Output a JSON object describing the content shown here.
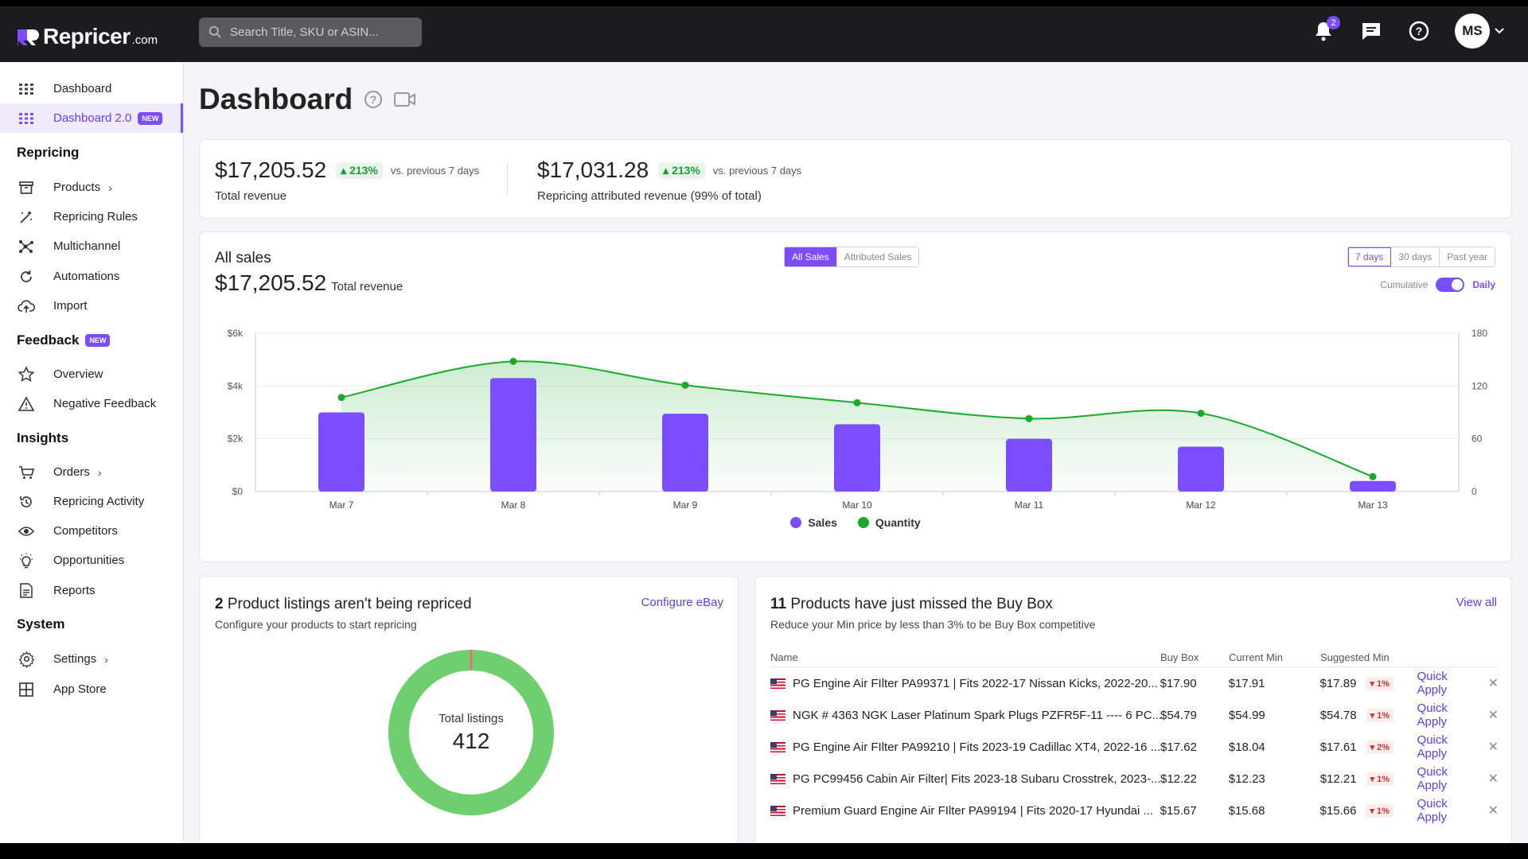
{
  "topbar": {
    "brand_name": "Repricer",
    "brand_tld": ".com",
    "search_placeholder": "Search Title, SKU or ASIN...",
    "notification_count": "2",
    "user_initials": "MS"
  },
  "sidebar": {
    "top_items": [
      {
        "label": "Dashboard",
        "icon": "grid-icon"
      },
      {
        "label": "Dashboard 2.0",
        "icon": "grid-icon",
        "badge": "NEW"
      }
    ],
    "sections": {
      "repricing": "Repricing",
      "feedback": "Feedback",
      "feedback_badge": "NEW",
      "insights": "Insights",
      "system": "System"
    },
    "repricing_items": [
      {
        "label": "Products",
        "icon": "box-icon"
      },
      {
        "label": "Repricing Rules",
        "icon": "wand-icon"
      },
      {
        "label": "Multichannel",
        "icon": "network-icon"
      },
      {
        "label": "Automations",
        "icon": "refresh-icon"
      },
      {
        "label": "Import",
        "icon": "upload-cloud-icon"
      }
    ],
    "feedback_items": [
      {
        "label": "Overview",
        "icon": "star-icon"
      },
      {
        "label": "Negative Feedback",
        "icon": "warning-icon"
      }
    ],
    "insights_items": [
      {
        "label": "Orders",
        "icon": "cart-icon"
      },
      {
        "label": "Repricing Activity",
        "icon": "history-icon"
      },
      {
        "label": "Competitors",
        "icon": "eye-icon"
      },
      {
        "label": "Opportunities",
        "icon": "lightbulb-icon"
      },
      {
        "label": "Reports",
        "icon": "report-icon"
      }
    ],
    "system_items": [
      {
        "label": "Settings",
        "icon": "gear-icon"
      },
      {
        "label": "App Store",
        "icon": "apps-icon"
      }
    ]
  },
  "page": {
    "title": "Dashboard"
  },
  "revenue": {
    "total_amount": "$17,205.52",
    "total_change": "213%",
    "total_vs": "vs. previous 7 days",
    "total_label": "Total revenue",
    "attr_amount": "$17,031.28",
    "attr_change": "213%",
    "attr_vs": "vs. previous 7 days",
    "attr_label": "Repricing attributed revenue (99% of total)"
  },
  "sales": {
    "title": "All sales",
    "amount": "$17,205.52",
    "amount_label": "Total revenue",
    "tab_all": "All Sales",
    "tab_attr": "Attributed Sales",
    "period_7": "7 days",
    "period_30": "30 days",
    "period_year": "Past year",
    "toggle_left": "Cumulative",
    "toggle_right": "Daily",
    "legend_sales": "Sales",
    "legend_quantity": "Quantity"
  },
  "chart_data": {
    "type": "bar",
    "categories": [
      "Mar 7",
      "Mar 8",
      "Mar 9",
      "Mar 10",
      "Mar 11",
      "Mar 12",
      "Mar 13"
    ],
    "series": [
      {
        "name": "Sales",
        "type": "bar",
        "axis": "left",
        "values": [
          3000,
          4300,
          2950,
          2550,
          2000,
          1700,
          400
        ]
      },
      {
        "name": "Quantity",
        "type": "line",
        "axis": "right",
        "values": [
          107,
          148,
          121,
          101,
          83,
          89,
          17
        ]
      }
    ],
    "y_left_ticks": [
      "$0",
      "$2k",
      "$4k",
      "$6k"
    ],
    "y_left_range": [
      0,
      6000
    ],
    "y_right_ticks": [
      "0",
      "60",
      "120",
      "180"
    ],
    "y_right_range": [
      0,
      180
    ],
    "colors": {
      "sales": "#7c4dff",
      "quantity": "#1aaa2a"
    },
    "grid": true
  },
  "unrepriced": {
    "count": "2",
    "title": "Product listings aren't being repriced",
    "subtitle": "Configure your products to start repricing",
    "link": "Configure eBay",
    "total_label": "Total listings",
    "total_value": "412",
    "repriced_fraction": 0.995,
    "colors": {
      "ok": "#6dcf6d",
      "bad": "#e57373"
    }
  },
  "buybox": {
    "count": "11",
    "title": "Products have just missed the Buy Box",
    "subtitle": "Reduce your Min price by less than 3% to be Buy Box competitive",
    "link": "View all",
    "headers": [
      "Name",
      "Buy Box",
      "Current Min",
      "Suggested Min"
    ],
    "action_label": "Quick Apply",
    "rows": [
      {
        "name": "PG Engine Air FIlter PA99371 | Fits 2022-17 Nissan Kicks, 2022-20...",
        "buy_box": "$17.90",
        "current_min": "$17.91",
        "suggested_min": "$17.89",
        "pct": "1%"
      },
      {
        "name": "NGK # 4363 NGK Laser Platinum Spark Plugs PZFR5F-11 ---- 6 PC...",
        "buy_box": "$54.79",
        "current_min": "$54.99",
        "suggested_min": "$54.78",
        "pct": "1%"
      },
      {
        "name": "PG Engine Air FIlter PA99210 | Fits 2023-19 Cadillac XT4, 2022-16 ...",
        "buy_box": "$17.62",
        "current_min": "$18.04",
        "suggested_min": "$17.61",
        "pct": "2%"
      },
      {
        "name": "PG PC99456 Cabin Air Filter| Fits 2023-18 Subaru Crosstrek, 2023-...",
        "buy_box": "$12.22",
        "current_min": "$12.23",
        "suggested_min": "$12.21",
        "pct": "1%"
      },
      {
        "name": "Premium Guard Engine Air FIlter PA99194 | Fits 2020-17 Hyundai ...",
        "buy_box": "$15.67",
        "current_min": "$15.68",
        "suggested_min": "$15.66",
        "pct": "1%"
      }
    ]
  }
}
